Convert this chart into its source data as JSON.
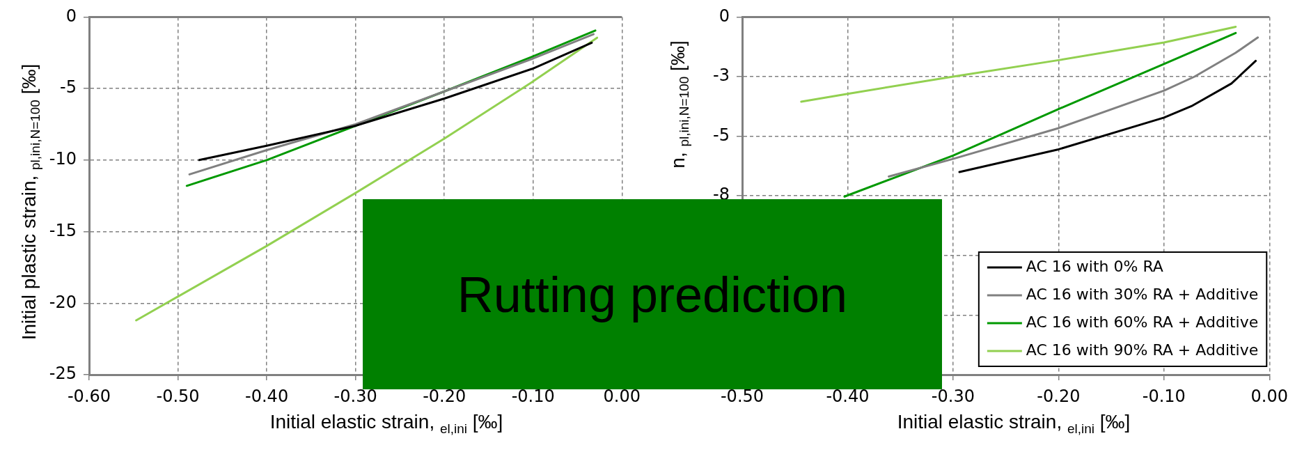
{
  "chart_data": [
    {
      "type": "line",
      "xlabel": "Initial elastic strain,  $_{el,ini}$ [‰]",
      "ylabel": "Initial plastic strain,  $_{pl,ini,N=100}$ [‰]",
      "annotations": [
        "Rutting prediction"
      ],
      "xlim": [
        -0.6,
        0
      ],
      "xticks": [
        {
          "value": -0.6,
          "label": "-0.60"
        },
        {
          "value": -0.5,
          "label": "-0.50"
        },
        {
          "value": -0.4,
          "label": "-0.40"
        },
        {
          "value": -0.3,
          "label": "-0.30"
        },
        {
          "value": -0.2,
          "label": "-0.20"
        },
        {
          "value": -0.1,
          "label": "-0.10"
        },
        {
          "value": 0,
          "label": "0.00"
        }
      ],
      "ylim": [
        -25,
        0
      ],
      "yticks": [
        -25,
        -20,
        -15,
        -10,
        -5,
        0
      ],
      "grid": true,
      "marker": "none",
      "legend": false,
      "series": [
        {
          "color": "#000000",
          "x": [
            -0.476,
            -0.4,
            -0.3,
            -0.2,
            -0.1,
            -0.034
          ],
          "values": [
            -10.0,
            -9.0,
            -7.6,
            -5.7,
            -3.6,
            -1.8
          ]
        },
        {
          "color": "#808080",
          "x": [
            -0.487,
            -0.4,
            -0.3,
            -0.2,
            -0.1,
            -0.032
          ],
          "values": [
            -11.0,
            -9.3,
            -7.5,
            -5.2,
            -2.9,
            -1.2
          ]
        },
        {
          "color": "#009900",
          "x": [
            -0.49,
            -0.4,
            -0.3,
            -0.2,
            -0.1,
            -0.03
          ],
          "values": [
            -11.8,
            -10.0,
            -7.6,
            -5.2,
            -2.75,
            -0.95
          ]
        },
        {
          "color": "#92d050",
          "x": [
            -0.547,
            -0.4,
            -0.3,
            -0.2,
            -0.1,
            -0.028
          ],
          "values": [
            -21.2,
            -16.0,
            -12.3,
            -8.5,
            -4.5,
            -1.45
          ]
        }
      ]
    },
    {
      "type": "line",
      "xlabel": "Initial elastic strain,  $_{el,ini}$ [‰]",
      "ylabel": "n,  $_{pl,ini,N=100}$ [‰]",
      "xlim": [
        -0.5,
        0
      ],
      "xticks": [
        {
          "value": -0.5,
          "label": "-0.50"
        },
        {
          "value": -0.4,
          "label": "-0.40"
        },
        {
          "value": -0.3,
          "label": "-0.30"
        },
        {
          "value": -0.2,
          "label": "-0.20"
        },
        {
          "value": -0.1,
          "label": "-0.10"
        },
        {
          "value": 0,
          "label": "0.00"
        }
      ],
      "ylim": [
        -15,
        0
      ],
      "yticks": [
        {
          "value": -15,
          "label": null
        },
        {
          "value": -12.5,
          "label": null
        },
        {
          "value": -10,
          "label": null
        },
        {
          "value": -7.5,
          "label": "-8"
        },
        -5,
        {
          "value": -2.5,
          "label": "-3"
        },
        0
      ],
      "grid": true,
      "marker": "none",
      "legend": "bottom right",
      "series": [
        {
          "name": "AC 16 with 0% RA",
          "color": "#000000",
          "x": [
            -0.294,
            -0.2,
            -0.1,
            -0.074,
            -0.036,
            -0.013
          ],
          "values": [
            -6.5,
            -5.55,
            -4.22,
            -3.74,
            -2.79,
            -1.84
          ]
        },
        {
          "name": "AC 16 with 30% RA + Additive",
          "color": "#808080",
          "x": [
            -0.361,
            -0.3,
            -0.2,
            -0.1,
            -0.071,
            -0.032,
            -0.011
          ],
          "values": [
            -6.69,
            -5.95,
            -4.66,
            -3.09,
            -2.5,
            -1.5,
            -0.86
          ]
        },
        {
          "name": "AC 16 with 60% RA + Additive",
          "color": "#009900",
          "x": [
            -0.403,
            -0.3,
            -0.2,
            -0.1,
            -0.032
          ],
          "values": [
            -7.53,
            -5.81,
            -3.86,
            -1.97,
            -0.67
          ]
        },
        {
          "name": "AC 16 with 90% RA + Additive",
          "color": "#92d050",
          "x": [
            -0.444,
            -0.4,
            -0.3,
            -0.2,
            -0.1,
            -0.032
          ],
          "values": [
            -3.55,
            -3.22,
            -2.5,
            -1.81,
            -1.07,
            -0.41
          ]
        }
      ]
    }
  ]
}
